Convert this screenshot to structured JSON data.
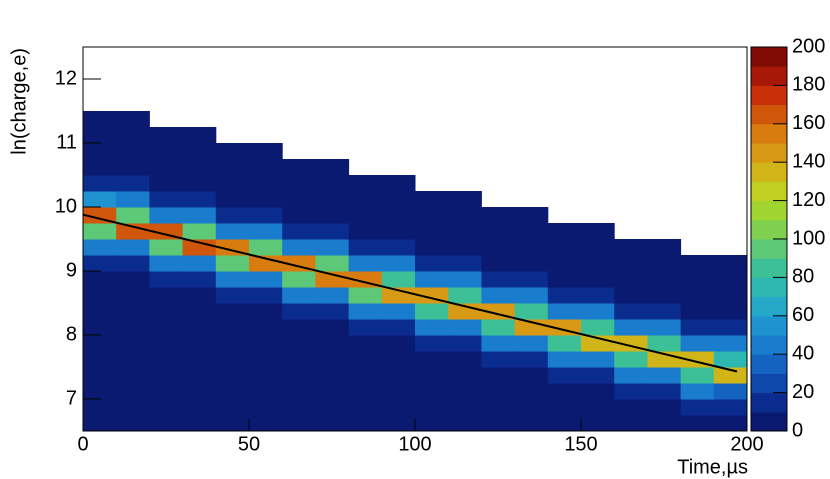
{
  "chart_data": {
    "type": "heatmap",
    "x_label": "Time,µs",
    "y_label": "ln(charge,e)",
    "xlim": [
      0,
      200
    ],
    "xticks": [
      0,
      50,
      100,
      150,
      200
    ],
    "ylim": [
      6.5,
      12.5
    ],
    "yticks": [
      7,
      8,
      9,
      10,
      11,
      12
    ],
    "zlim": [
      0,
      200
    ],
    "zticks": [
      0,
      20,
      40,
      60,
      80,
      100,
      120,
      140,
      160,
      180,
      200
    ],
    "x_bins": [
      0,
      10,
      20,
      30,
      40,
      50,
      60,
      70,
      80,
      90,
      100,
      110,
      120,
      130,
      140,
      150,
      160,
      170,
      180,
      190,
      200
    ],
    "y_bins": [
      6.5,
      6.75,
      7,
      7.25,
      7.5,
      7.75,
      8,
      8.25,
      8.5,
      8.75,
      9,
      9.25,
      9.5,
      9.75,
      10,
      10.25,
      10.5,
      10.75,
      11,
      11.25,
      11.5,
      11.75,
      12,
      12.25,
      12.5
    ],
    "z": [
      [
        8,
        8,
        8,
        8,
        8,
        8,
        8,
        8,
        8,
        8,
        15,
        40,
        99,
        165,
        50,
        15,
        8,
        3,
        3,
        1,
        0,
        0,
        0,
        0
      ],
      [
        8,
        8,
        8,
        8,
        8,
        8,
        8,
        8,
        8,
        8,
        15,
        49,
        163,
        98,
        40,
        15,
        8,
        3,
        3,
        1,
        0,
        0,
        0,
        0
      ],
      [
        8,
        8,
        8,
        8,
        8,
        8,
        8,
        8,
        8,
        15,
        40,
        97,
        161,
        48,
        15,
        8,
        3,
        3,
        1,
        0,
        0,
        0,
        0,
        0
      ],
      [
        8,
        8,
        8,
        8,
        8,
        8,
        8,
        8,
        8,
        15,
        48,
        160,
        96,
        40,
        15,
        8,
        3,
        3,
        1,
        0,
        0,
        0,
        0,
        0
      ],
      [
        8,
        8,
        8,
        8,
        8,
        8,
        8,
        8,
        15,
        40,
        95,
        158,
        47,
        15,
        8,
        3,
        3,
        1,
        0,
        0,
        0,
        0,
        0,
        0
      ],
      [
        8,
        8,
        8,
        8,
        8,
        8,
        8,
        8,
        15,
        47,
        156,
        94,
        40,
        15,
        8,
        3,
        3,
        1,
        0,
        0,
        0,
        0,
        0,
        0
      ],
      [
        8,
        8,
        8,
        8,
        8,
        8,
        8,
        15,
        40,
        92,
        154,
        46,
        15,
        8,
        3,
        3,
        1,
        0,
        0,
        0,
        0,
        0,
        0,
        0
      ],
      [
        8,
        8,
        8,
        8,
        8,
        8,
        8,
        15,
        46,
        152,
        91,
        40,
        15,
        8,
        3,
        3,
        1,
        0,
        0,
        0,
        0,
        0,
        0,
        0
      ],
      [
        8,
        8,
        8,
        8,
        8,
        8,
        15,
        40,
        91,
        151,
        45,
        15,
        8,
        3,
        3,
        1,
        0,
        0,
        0,
        0,
        0,
        0,
        0,
        0
      ],
      [
        8,
        8,
        8,
        8,
        8,
        8,
        15,
        45,
        149,
        89,
        40,
        15,
        8,
        3,
        3,
        1,
        0,
        0,
        0,
        0,
        0,
        0,
        0,
        0
      ],
      [
        8,
        8,
        8,
        8,
        8,
        15,
        40,
        88,
        147,
        44,
        15,
        8,
        3,
        3,
        1,
        0,
        0,
        0,
        0,
        0,
        0,
        0,
        0,
        0
      ],
      [
        8,
        8,
        8,
        8,
        8,
        15,
        44,
        145,
        87,
        40,
        15,
        8,
        3,
        3,
        1,
        0,
        0,
        0,
        0,
        0,
        0,
        0,
        0,
        0
      ],
      [
        8,
        8,
        8,
        8,
        15,
        40,
        86,
        143,
        43,
        15,
        8,
        3,
        3,
        1,
        0,
        0,
        0,
        0,
        0,
        0,
        0,
        0,
        0,
        0
      ],
      [
        8,
        8,
        8,
        8,
        15,
        43,
        142,
        85,
        40,
        15,
        8,
        3,
        3,
        1,
        0,
        0,
        0,
        0,
        0,
        0,
        0,
        0,
        0,
        0
      ],
      [
        8,
        8,
        8,
        15,
        40,
        84,
        140,
        42,
        15,
        8,
        3,
        3,
        1,
        0,
        0,
        0,
        0,
        0,
        0,
        0,
        0,
        0,
        0,
        0
      ],
      [
        8,
        8,
        8,
        15,
        41,
        138,
        83,
        40,
        15,
        8,
        3,
        3,
        1,
        0,
        0,
        0,
        0,
        0,
        0,
        0,
        0,
        0,
        0,
        0
      ],
      [
        8,
        8,
        15,
        40,
        82,
        136,
        41,
        15,
        8,
        3,
        3,
        1,
        0,
        0,
        0,
        0,
        0,
        0,
        0,
        0,
        0,
        0,
        0,
        0
      ],
      [
        8,
        8,
        15,
        40,
        134,
        80,
        40,
        15,
        8,
        3,
        3,
        1,
        0,
        0,
        0,
        0,
        0,
        0,
        0,
        0,
        0,
        0,
        0,
        0
      ],
      [
        8,
        15,
        40,
        80,
        133,
        40,
        15,
        8,
        3,
        3,
        1,
        0,
        0,
        0,
        0,
        0,
        0,
        0,
        0,
        0,
        0,
        0,
        0,
        0
      ],
      [
        8,
        15,
        39,
        131,
        79,
        40,
        15,
        8,
        3,
        3,
        1,
        0,
        0,
        0,
        0,
        0,
        0,
        0,
        0,
        0,
        0,
        0,
        0,
        0
      ]
    ],
    "palette": [
      "#0a1a70",
      "#0b2c8f",
      "#0e48a8",
      "#1463c0",
      "#1a7ccc",
      "#1e93d0",
      "#24a8c8",
      "#2cb8b0",
      "#3ec096",
      "#5cc878",
      "#80d050",
      "#a0d430",
      "#c0d020",
      "#d0b418",
      "#d89a14",
      "#d87c10",
      "#d0560c",
      "#c8300a",
      "#a81808",
      "#800c06"
    ],
    "fit": {
      "x": [
        0,
        197
      ],
      "y": [
        9.88,
        7.43
      ],
      "color": "#000000"
    }
  }
}
